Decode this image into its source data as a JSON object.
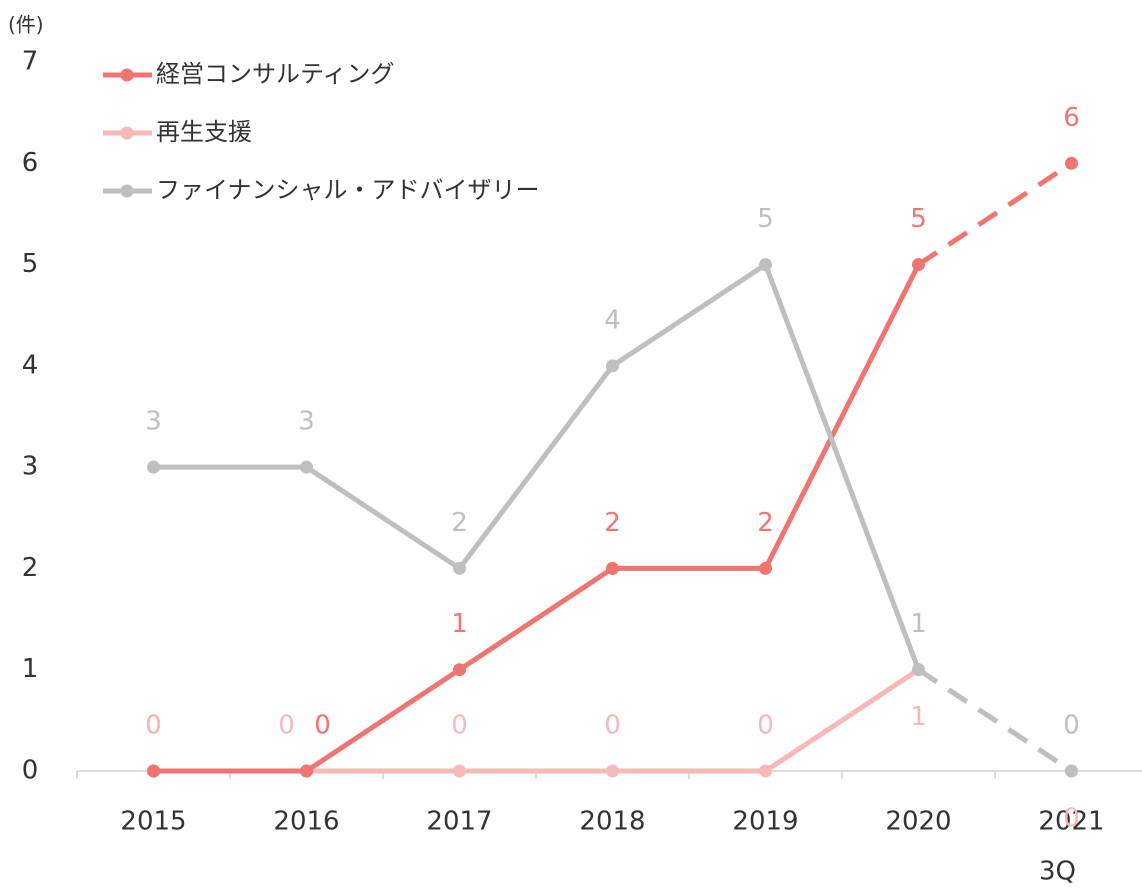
{
  "chart_data": {
    "type": "line",
    "y_unit": "(件)",
    "categories": [
      "2015",
      "2016",
      "2017",
      "2018",
      "2019",
      "2020",
      "2021"
    ],
    "category_note": "3Q",
    "dashed_from_index": 5,
    "legend": "top-left",
    "ylim": [
      0,
      7
    ],
    "yticks": [
      0,
      1,
      2,
      3,
      4,
      5,
      6,
      7
    ],
    "series": [
      {
        "name": "経営コンサルティング",
        "color": "#f07470",
        "values": [
          0,
          0,
          1,
          2,
          2,
          5,
          6
        ]
      },
      {
        "name": "再生支援",
        "color": "#f7b8b8",
        "values": [
          0,
          0,
          0,
          0,
          0,
          1,
          0
        ]
      },
      {
        "name": "ファイナンシャル・アドバイザリー",
        "color": "#bfbfbf",
        "values": [
          3,
          3,
          2,
          4,
          5,
          1,
          0
        ]
      }
    ]
  }
}
